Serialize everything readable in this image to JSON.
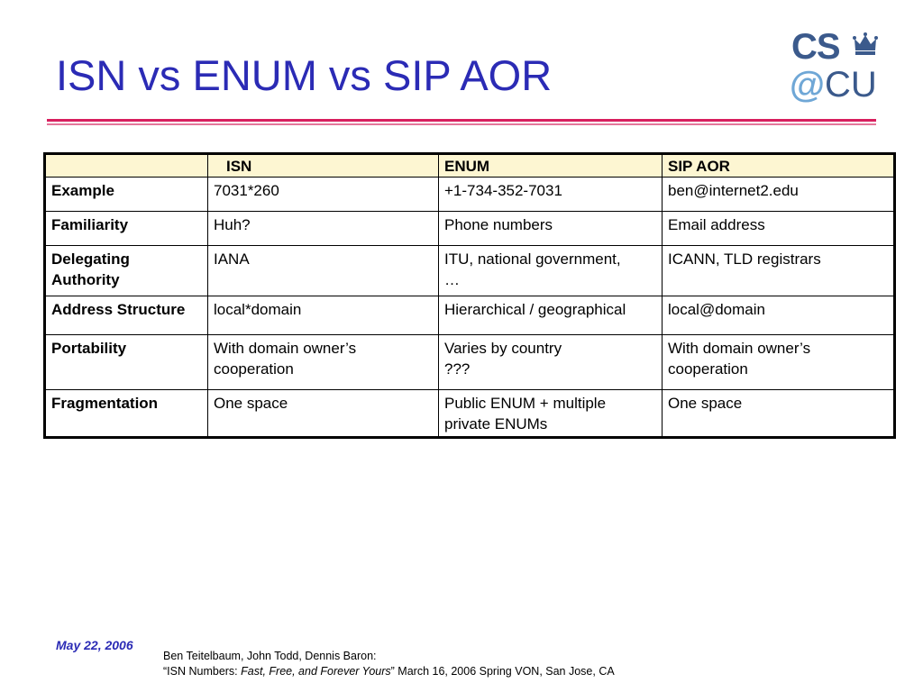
{
  "slide": {
    "title": "ISN vs ENUM vs SIP AOR",
    "colors": {
      "title": "#2b2bb5",
      "rule": "#d81f5e",
      "header_fill": "#fdf6d2",
      "logo_dark": "#3b5a8c",
      "logo_light": "#6fa7d6"
    }
  },
  "logo": {
    "cs": "CS",
    "at": "@",
    "cu": "CU",
    "icon": "crown-icon"
  },
  "table": {
    "columns": [
      "",
      "ISN",
      "ENUM",
      "SIP AOR"
    ],
    "rows": [
      {
        "label": [
          "Example"
        ],
        "cells": [
          [
            "7031*260"
          ],
          [
            "+1-734-352-7031"
          ],
          [
            "ben@internet2.edu"
          ]
        ]
      },
      {
        "label": [
          "Familiarity"
        ],
        "cells": [
          [
            "Huh?"
          ],
          [
            "Phone numbers"
          ],
          [
            "Email address"
          ]
        ]
      },
      {
        "label": [
          "Delegating",
          "Authority"
        ],
        "cells": [
          [
            "IANA"
          ],
          [
            "ITU, national government,",
            "…"
          ],
          [
            "ICANN, TLD registrars"
          ]
        ]
      },
      {
        "label": [
          "Address Structure"
        ],
        "cells": [
          [
            "local*domain"
          ],
          [
            "Hierarchical / geographical"
          ],
          [
            "local@domain"
          ]
        ]
      },
      {
        "label": [
          "Portability"
        ],
        "cells": [
          [
            "With domain owner’s",
            "cooperation"
          ],
          [
            "Varies by country",
            "???"
          ],
          [
            "With domain owner’s",
            "cooperation"
          ]
        ]
      },
      {
        "label": [
          "Fragmentation"
        ],
        "cells": [
          [
            "One space"
          ],
          [
            "Public ENUM + multiple",
            "private ENUMs"
          ],
          [
            "One space"
          ]
        ]
      }
    ]
  },
  "footer": {
    "date": "May 22, 2006",
    "authors": "Ben Teitelbaum, John Todd, Dennis Baron:",
    "quote_open": "“ISN Numbers: ",
    "quote_italic": "Fast, Free, and Forever Yours",
    "quote_close": "” March 16, 2006 Spring VON, San Jose, CA"
  }
}
